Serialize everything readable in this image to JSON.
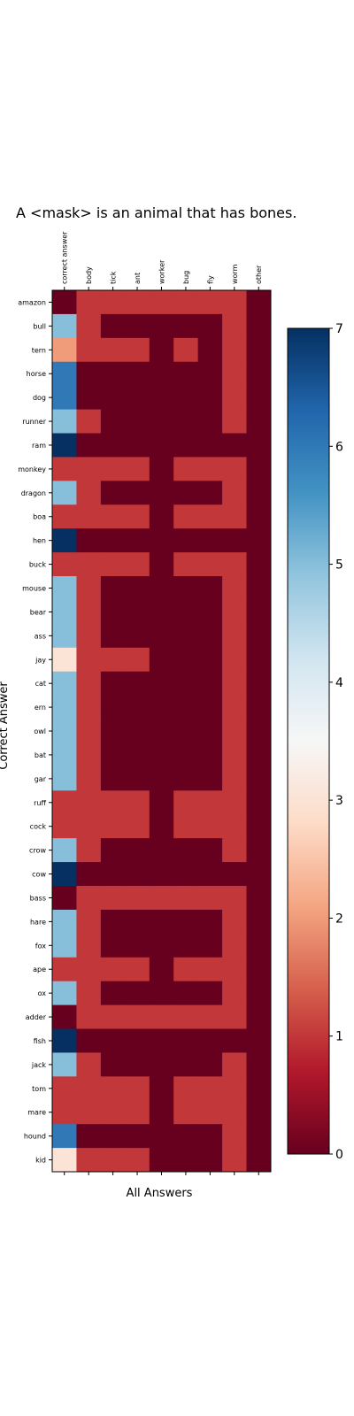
{
  "chart_data": {
    "type": "heatmap",
    "title": "A <mask> is an animal that has bones.",
    "xlabel": "All Answers",
    "ylabel": "Correct Answer",
    "columns": [
      "correct answer",
      "body",
      "tick",
      "ant",
      "worker",
      "bug",
      "fly",
      "worm",
      "other"
    ],
    "rows": [
      "amazon",
      "bull",
      "tern",
      "horse",
      "dog",
      "runner",
      "ram",
      "monkey",
      "dragon",
      "boa",
      "hen",
      "buck",
      "mouse",
      "bear",
      "ass",
      "jay",
      "cat",
      "ern",
      "owl",
      "bat",
      "gar",
      "ruff",
      "cock",
      "crow",
      "cow",
      "bass",
      "hare",
      "fox",
      "ape",
      "ox",
      "adder",
      "fish",
      "jack",
      "tom",
      "mare",
      "hound",
      "kid"
    ],
    "values": [
      [
        0,
        1,
        1,
        1,
        1,
        1,
        1,
        1,
        0
      ],
      [
        5,
        1,
        0,
        0,
        0,
        0,
        0,
        1,
        0
      ],
      [
        2,
        1,
        1,
        1,
        0,
        1,
        0,
        1,
        0
      ],
      [
        6,
        0,
        0,
        0,
        0,
        0,
        0,
        1,
        0
      ],
      [
        6,
        0,
        0,
        0,
        0,
        0,
        0,
        1,
        0
      ],
      [
        5,
        1,
        0,
        0,
        0,
        0,
        0,
        1,
        0
      ],
      [
        7,
        0,
        0,
        0,
        0,
        0,
        0,
        0,
        0
      ],
      [
        1,
        1,
        1,
        1,
        0,
        1,
        1,
        1,
        0
      ],
      [
        5,
        1,
        0,
        0,
        0,
        0,
        0,
        1,
        0
      ],
      [
        1,
        1,
        1,
        1,
        0,
        1,
        1,
        1,
        0
      ],
      [
        7,
        0,
        0,
        0,
        0,
        0,
        0,
        0,
        0
      ],
      [
        1,
        1,
        1,
        1,
        0,
        1,
        1,
        1,
        0
      ],
      [
        5,
        1,
        0,
        0,
        0,
        0,
        0,
        1,
        0
      ],
      [
        5,
        1,
        0,
        0,
        0,
        0,
        0,
        1,
        0
      ],
      [
        5,
        1,
        0,
        0,
        0,
        0,
        0,
        1,
        0
      ],
      [
        3,
        1,
        1,
        1,
        0,
        0,
        0,
        1,
        0
      ],
      [
        5,
        1,
        0,
        0,
        0,
        0,
        0,
        1,
        0
      ],
      [
        5,
        1,
        0,
        0,
        0,
        0,
        0,
        1,
        0
      ],
      [
        5,
        1,
        0,
        0,
        0,
        0,
        0,
        1,
        0
      ],
      [
        5,
        1,
        0,
        0,
        0,
        0,
        0,
        1,
        0
      ],
      [
        5,
        1,
        0,
        0,
        0,
        0,
        0,
        1,
        0
      ],
      [
        1,
        1,
        1,
        1,
        0,
        1,
        1,
        1,
        0
      ],
      [
        1,
        1,
        1,
        1,
        0,
        1,
        1,
        1,
        0
      ],
      [
        5,
        1,
        0,
        0,
        0,
        0,
        0,
        1,
        0
      ],
      [
        7,
        0,
        0,
        0,
        0,
        0,
        0,
        0,
        0
      ],
      [
        0,
        1,
        1,
        1,
        1,
        1,
        1,
        1,
        0
      ],
      [
        5,
        1,
        0,
        0,
        0,
        0,
        0,
        1,
        0
      ],
      [
        5,
        1,
        0,
        0,
        0,
        0,
        0,
        1,
        0
      ],
      [
        1,
        1,
        1,
        1,
        0,
        1,
        1,
        1,
        0
      ],
      [
        5,
        1,
        0,
        0,
        0,
        0,
        0,
        1,
        0
      ],
      [
        0,
        1,
        1,
        1,
        1,
        1,
        1,
        1,
        0
      ],
      [
        7,
        0,
        0,
        0,
        0,
        0,
        0,
        0,
        0
      ],
      [
        5,
        1,
        0,
        0,
        0,
        0,
        0,
        1,
        0
      ],
      [
        1,
        1,
        1,
        1,
        0,
        1,
        1,
        1,
        0
      ],
      [
        1,
        1,
        1,
        1,
        0,
        1,
        1,
        1,
        0
      ],
      [
        6,
        0,
        0,
        0,
        0,
        0,
        0,
        1,
        0
      ],
      [
        3,
        1,
        1,
        1,
        0,
        0,
        0,
        1,
        0
      ]
    ],
    "colorbar": {
      "min": 0,
      "max": 7,
      "ticks": [
        "0",
        "1",
        "2",
        "3",
        "4",
        "5",
        "6",
        "7"
      ]
    },
    "colormap": "RdBu",
    "grid": false
  }
}
